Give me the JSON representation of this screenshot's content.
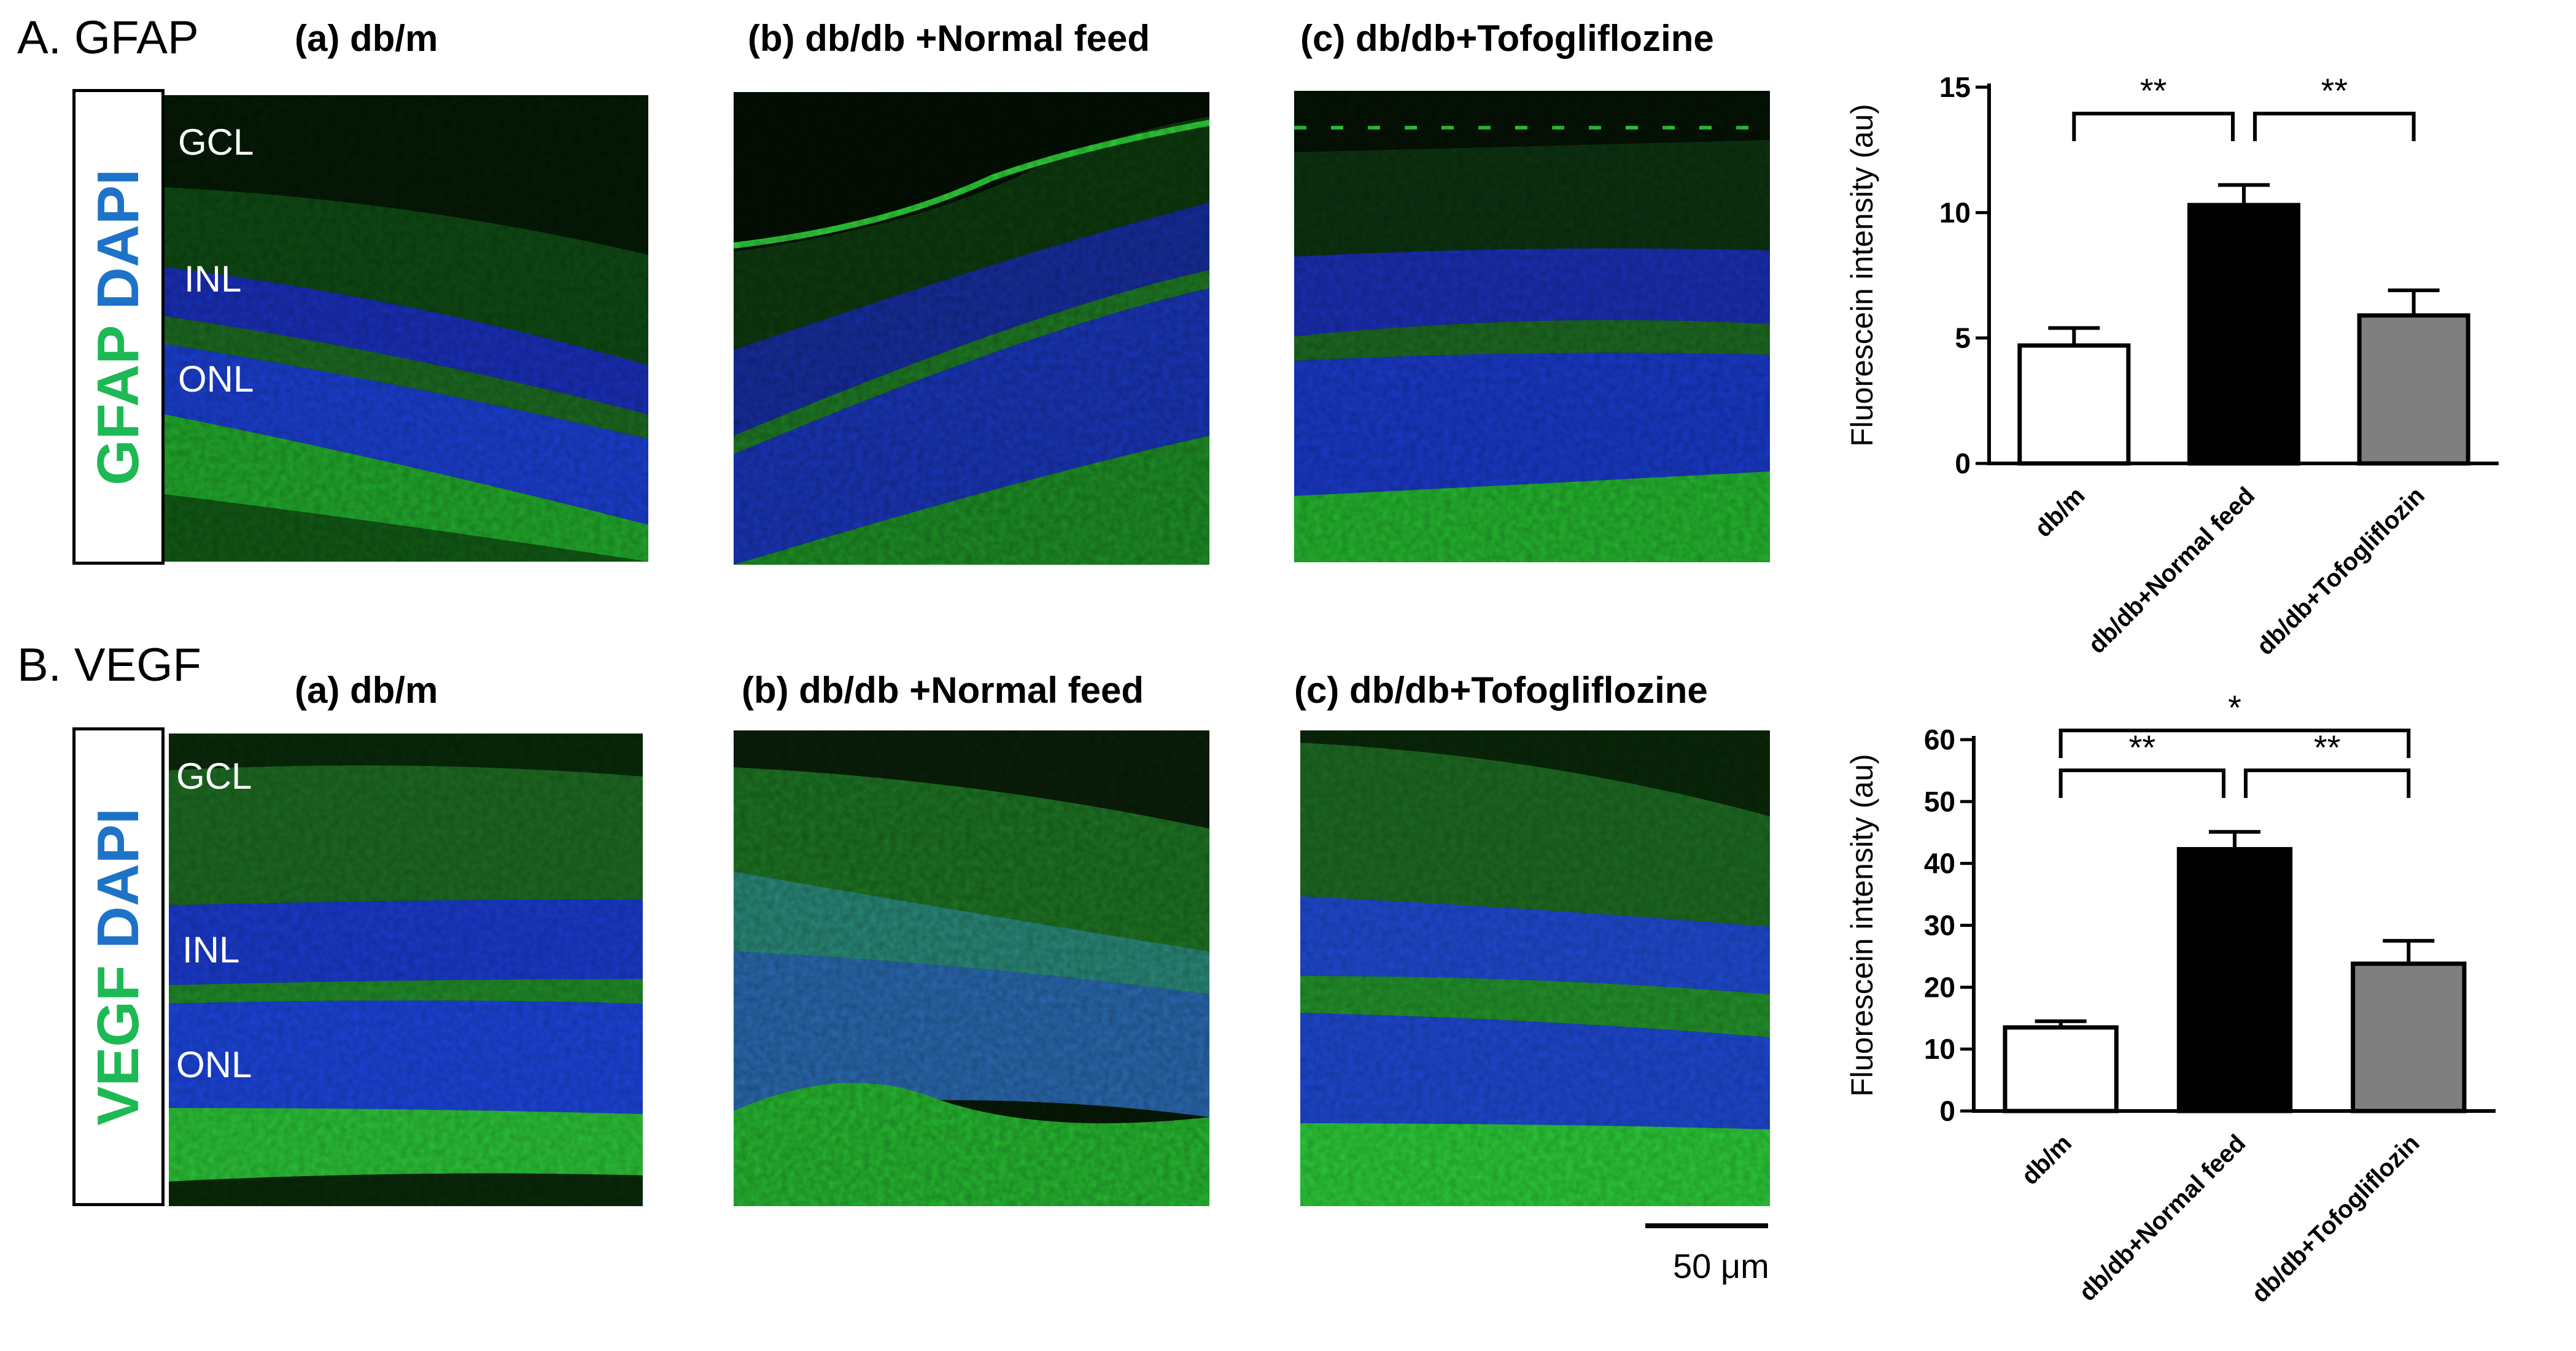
{
  "section_a": {
    "title": "A. GFAP",
    "stain_marker": "GFAP",
    "stain_dapi": "DAPI",
    "panels": [
      {
        "label": "(a) db/m"
      },
      {
        "label": "(b) db/db +Normal feed"
      },
      {
        "label": "(c) db/db+Tofogliflozine"
      }
    ],
    "layers": {
      "gcl": "GCL",
      "inl": "INL",
      "onl": "ONL"
    }
  },
  "section_b": {
    "title": "B. VEGF",
    "stain_marker": "VEGF",
    "stain_dapi": "DAPI",
    "panels": [
      {
        "label": "(a) db/m"
      },
      {
        "label": "(b) db/db +Normal feed"
      },
      {
        "label": "(c) db/db+Tofogliflozine"
      }
    ],
    "layers": {
      "gcl": "GCL",
      "inl": "INL",
      "onl": "ONL"
    }
  },
  "scale_bar": {
    "label": "50 μm"
  },
  "colors": {
    "marker_green": "#1db954",
    "dapi_blue": "#1e73c8",
    "bar_white": "#ffffff",
    "bar_black": "#000000",
    "bar_gray": "#7f7f7f"
  },
  "chart_data": [
    {
      "type": "bar",
      "categories": [
        "db/m",
        "db/db+Normal feed",
        "db/db+Tofogliflozin"
      ],
      "values": [
        4.7,
        10.3,
        5.9
      ],
      "errors": [
        0.7,
        0.8,
        1.0
      ],
      "ylabel": "Fluorescein intensity (au)",
      "ylim": [
        0,
        15
      ],
      "yticks": [
        0,
        5,
        10,
        15
      ],
      "bar_colors": [
        "#ffffff",
        "#000000",
        "#7f7f7f"
      ],
      "significance": [
        {
          "from": 0,
          "to": 1,
          "label": "**",
          "level": 0
        },
        {
          "from": 1,
          "to": 2,
          "label": "**",
          "level": 0
        }
      ]
    },
    {
      "type": "bar",
      "categories": [
        "db/m",
        "db/db+Normal feed",
        "db/db+Tofogliflozin"
      ],
      "values": [
        13.5,
        42.3,
        23.8
      ],
      "errors": [
        1.0,
        2.8,
        3.7
      ],
      "ylabel": "Fluorescein intensity (au)",
      "ylim": [
        0,
        60
      ],
      "yticks": [
        0,
        10,
        20,
        30,
        40,
        50,
        60
      ],
      "bar_colors": [
        "#ffffff",
        "#000000",
        "#7f7f7f"
      ],
      "significance": [
        {
          "from": 0,
          "to": 1,
          "label": "**",
          "level": 0
        },
        {
          "from": 1,
          "to": 2,
          "label": "**",
          "level": 0
        },
        {
          "from": 0,
          "to": 2,
          "label": "*",
          "level": 1
        }
      ]
    }
  ]
}
